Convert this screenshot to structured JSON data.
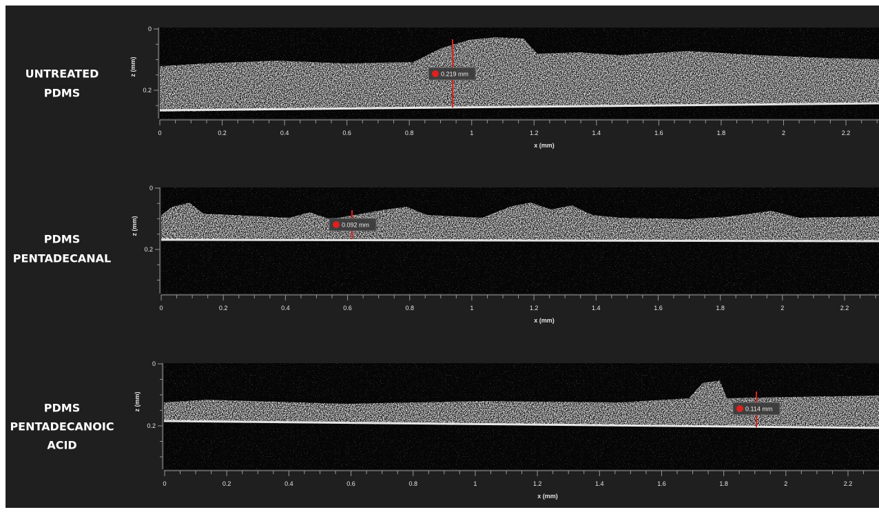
{
  "panels": [
    {
      "label": [
        "UNTREATED",
        "PDMS"
      ],
      "measurement": "0.219 mm",
      "x_axis_label": "x (mm)",
      "z_axis_label": "z (mm)",
      "x_ticks": [
        "0",
        "0.2",
        "0.4",
        "0.6",
        "0.8",
        "1",
        "1.2",
        "1.4",
        "1.6",
        "1.8",
        "2",
        "2.2"
      ],
      "z_ticks": [
        "0",
        "0.2"
      ]
    },
    {
      "label": [
        "PDMS",
        "PENTADECANAL"
      ],
      "measurement": "0.092 mm",
      "x_axis_label": "x (mm)",
      "z_axis_label": "z (mm)",
      "x_ticks": [
        "0",
        "0.2",
        "0.4",
        "0.6",
        "0.8",
        "1",
        "1.2",
        "1.4",
        "1.6",
        "1.8",
        "2",
        "2.2"
      ],
      "z_ticks": [
        "0",
        "0.2"
      ]
    },
    {
      "label": [
        "PDMS",
        "PENTADECANOIC",
        "ACID"
      ],
      "measurement": "0.114 mm",
      "x_axis_label": "x (mm)",
      "z_axis_label": "z (mm)",
      "x_ticks": [
        "0",
        "0.2",
        "0.4",
        "0.6",
        "0.8",
        "1",
        "1.2",
        "1.4",
        "1.6",
        "1.8",
        "2",
        "2.2"
      ],
      "z_ticks": [
        "0",
        "0.2"
      ]
    }
  ]
}
